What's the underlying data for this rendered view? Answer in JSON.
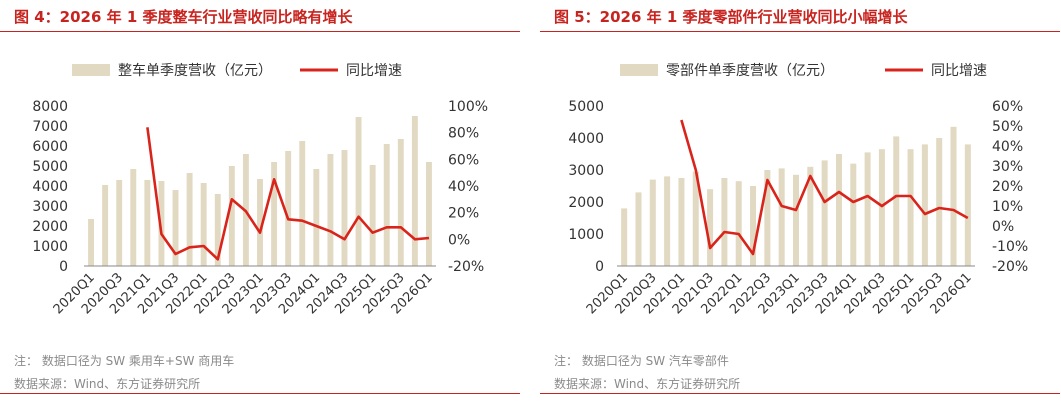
{
  "colors": {
    "title_red": "#c8241f",
    "bar": "#e2d9c2",
    "line": "#d9241c",
    "note": "#8a8a8a"
  },
  "panels": [
    {
      "title": "图 4：2026 年 1 季度整车行业营收同比略有增长",
      "note": "注：  数据口径为 SW 乘用车+SW 商用车",
      "source": "数据来源：Wind、东方证券研究所"
    },
    {
      "title": "图 5：2026 年 1 季度零部件行业营收同比小幅增长",
      "note": "注：  数据口径为 SW 汽车零部件",
      "source": "数据来源：Wind、东方证券研究所"
    }
  ],
  "chart_data": [
    {
      "type": "bar+line",
      "categories": [
        "2020Q1",
        "2020Q2",
        "2020Q3",
        "2020Q4",
        "2021Q1",
        "2021Q2",
        "2021Q3",
        "2021Q4",
        "2022Q1",
        "2022Q2",
        "2022Q3",
        "2022Q4",
        "2023Q1",
        "2023Q2",
        "2023Q3",
        "2023Q4",
        "2024Q1",
        "2024Q2",
        "2024Q3",
        "2024Q4",
        "2025Q1",
        "2025Q2",
        "2025Q3",
        "2025Q4",
        "2026Q1"
      ],
      "x_tick_labels": [
        "2020Q1",
        "2020Q3",
        "2021Q1",
        "2021Q3",
        "2022Q1",
        "2022Q3",
        "2023Q1",
        "2023Q3",
        "2024Q1",
        "2024Q3",
        "2025Q1",
        "2025Q3",
        "2026Q1"
      ],
      "series": [
        {
          "name": "整车单季度营收（亿元）",
          "type": "bar",
          "axis": "left",
          "values": [
            2350,
            4050,
            4300,
            4850,
            4300,
            4250,
            3800,
            4650,
            4150,
            3600,
            5000,
            5600,
            4350,
            5200,
            5750,
            6250,
            4850,
            5600,
            5800,
            7450,
            5050,
            6100,
            6350,
            7500,
            5200
          ]
        },
        {
          "name": "同比增速",
          "type": "line",
          "axis": "right",
          "unit": "%",
          "values": [
            null,
            null,
            null,
            null,
            84,
            4,
            -11,
            -6,
            -5,
            -15,
            30,
            21,
            5,
            45,
            15,
            14,
            10,
            6,
            0,
            17,
            5,
            9,
            9,
            0,
            1
          ]
        }
      ],
      "left_axis": {
        "min": 0,
        "max": 8000,
        "ticks": [
          "0",
          "1000",
          "2000",
          "3000",
          "4000",
          "5000",
          "6000",
          "7000",
          "8000"
        ]
      },
      "right_axis": {
        "min": -20,
        "max": 100,
        "ticks": [
          "-20%",
          "0%",
          "20%",
          "40%",
          "60%",
          "80%",
          "100%"
        ]
      },
      "legend_position": "top"
    },
    {
      "type": "bar+line",
      "categories": [
        "2020Q1",
        "2020Q2",
        "2020Q3",
        "2020Q4",
        "2021Q1",
        "2021Q2",
        "2021Q3",
        "2021Q4",
        "2022Q1",
        "2022Q2",
        "2022Q3",
        "2022Q4",
        "2023Q1",
        "2023Q2",
        "2023Q3",
        "2023Q4",
        "2024Q1",
        "2024Q2",
        "2024Q3",
        "2024Q4",
        "2025Q1",
        "2025Q2",
        "2025Q3",
        "2025Q4",
        "2026Q1"
      ],
      "x_tick_labels": [
        "2020Q1",
        "2020Q3",
        "2021Q1",
        "2021Q3",
        "2022Q1",
        "2022Q3",
        "2023Q1",
        "2023Q3",
        "2024Q1",
        "2024Q3",
        "2025Q1",
        "2025Q3",
        "2026Q1"
      ],
      "series": [
        {
          "name": "零部件单季度营收（亿元）",
          "type": "bar",
          "axis": "left",
          "values": [
            1800,
            2300,
            2700,
            2800,
            2750,
            2950,
            2400,
            2750,
            2650,
            2500,
            3000,
            3050,
            2850,
            3100,
            3300,
            3500,
            3200,
            3550,
            3650,
            4050,
            3650,
            3800,
            4000,
            4350,
            3800
          ]
        },
        {
          "name": "同比增速",
          "type": "line",
          "axis": "right",
          "unit": "%",
          "values": [
            null,
            null,
            null,
            null,
            53,
            28,
            -11,
            -3,
            -4,
            -14,
            23,
            10,
            8,
            25,
            12,
            17,
            12,
            15,
            10,
            15,
            15,
            6,
            9,
            8,
            4
          ]
        }
      ],
      "left_axis": {
        "min": 0,
        "max": 5000,
        "ticks": [
          "0",
          "1000",
          "2000",
          "3000",
          "4000",
          "5000"
        ]
      },
      "right_axis": {
        "min": -20,
        "max": 60,
        "ticks": [
          "-20%",
          "-10%",
          "0%",
          "10%",
          "20%",
          "30%",
          "40%",
          "50%",
          "60%"
        ]
      },
      "legend_position": "top"
    }
  ]
}
